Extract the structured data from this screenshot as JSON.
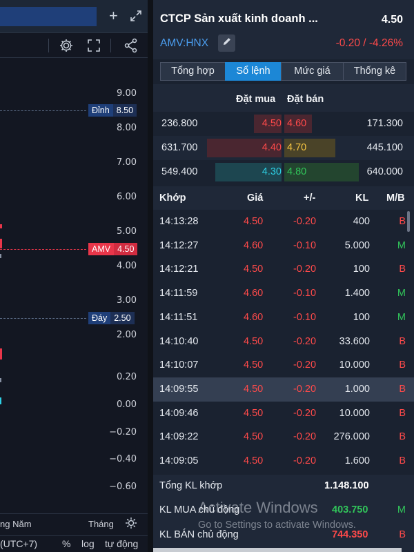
{
  "chart": {
    "price_ticks": [
      "9.00",
      "8.00",
      "7.00",
      "6.00",
      "5.00",
      "4.00",
      "3.00",
      "2.00"
    ],
    "indicator_ticks": [
      "0.20",
      "0.00",
      "−0.20",
      "−0.40",
      "−0.60"
    ],
    "high_label": "Đỉnh",
    "high_value": "8.50",
    "current_label": "AMV",
    "current_value": "4.50",
    "low_label": "Đáy",
    "low_value": "2.50",
    "time_left": "ng Năm",
    "time_right": "Tháng",
    "timezone": "(UTC+7)",
    "percent": "%",
    "log": "log",
    "auto": "tự động",
    "colors": {
      "high_tag": "#1f3f79",
      "current_tag": "#e9364a",
      "low_tag": "#1f3f79"
    }
  },
  "panel": {
    "company": "CTCP Sản xuất kinh doanh ...",
    "price": "4.50",
    "ticker": "AMV:HNX",
    "change": "-0.20 / -4.26%",
    "tabs": [
      {
        "label": "Tổng hợp",
        "active": false
      },
      {
        "label": "Sổ lệnh",
        "active": true
      },
      {
        "label": "Mức giá",
        "active": false
      },
      {
        "label": "Thống kê",
        "active": false
      }
    ],
    "book_header": {
      "buy": "Đặt mua",
      "sell": "Đặt bán"
    },
    "book": [
      {
        "buy_vol": "236.800",
        "buy_price": "4.50",
        "sell_price": "4.60",
        "sell_vol": "171.300"
      },
      {
        "buy_vol": "631.700",
        "buy_price": "4.40",
        "sell_price": "4.70",
        "sell_vol": "445.100"
      },
      {
        "buy_vol": "549.400",
        "buy_price": "4.30",
        "sell_price": "4.80",
        "sell_vol": "640.000"
      }
    ],
    "match_header": {
      "time": "Khớp",
      "price": "Giá",
      "change": "+/-",
      "vol": "KL",
      "side": "M/B"
    },
    "matches": [
      {
        "time": "14:13:28",
        "price": "4.50",
        "change": "-0.20",
        "vol": "400",
        "side": "B"
      },
      {
        "time": "14:12:27",
        "price": "4.60",
        "change": "-0.10",
        "vol": "5.000",
        "side": "M"
      },
      {
        "time": "14:12:21",
        "price": "4.50",
        "change": "-0.20",
        "vol": "100",
        "side": "B"
      },
      {
        "time": "14:11:59",
        "price": "4.60",
        "change": "-0.10",
        "vol": "1.400",
        "side": "M"
      },
      {
        "time": "14:11:51",
        "price": "4.60",
        "change": "-0.10",
        "vol": "100",
        "side": "M"
      },
      {
        "time": "14:10:40",
        "price": "4.50",
        "change": "-0.20",
        "vol": "33.600",
        "side": "B"
      },
      {
        "time": "14:10:07",
        "price": "4.50",
        "change": "-0.20",
        "vol": "10.000",
        "side": "B"
      },
      {
        "time": "14:09:55",
        "price": "4.50",
        "change": "-0.20",
        "vol": "1.000",
        "side": "B",
        "highlighted": true
      },
      {
        "time": "14:09:46",
        "price": "4.50",
        "change": "-0.20",
        "vol": "10.000",
        "side": "B"
      },
      {
        "time": "14:09:22",
        "price": "4.50",
        "change": "-0.20",
        "vol": "276.000",
        "side": "B"
      },
      {
        "time": "14:09:05",
        "price": "4.50",
        "change": "-0.20",
        "vol": "1.600",
        "side": "B"
      }
    ],
    "totals": {
      "matched_label": "Tổng KL khớp",
      "matched_value": "1.148.100",
      "buy_label": "KL MUA chủ động",
      "buy_value": "403.750",
      "buy_side": "M",
      "sell_label": "KL BÁN chủ động",
      "sell_value": "744.350",
      "sell_side": "B"
    },
    "colors": {
      "down": "#ff4a4a",
      "up": "#31c55a",
      "ref": "#f5c542",
      "floor": "#2ed1e6",
      "accent": "#1c87d6"
    }
  },
  "watermark": {
    "line1": "Activate Windows",
    "line2": "Go to Settings to activate Windows."
  },
  "icons": [
    "plus-icon",
    "expand-icon",
    "gear-icon",
    "fullscreen-icon",
    "share-icon",
    "pencil-icon",
    "sun-icon"
  ]
}
